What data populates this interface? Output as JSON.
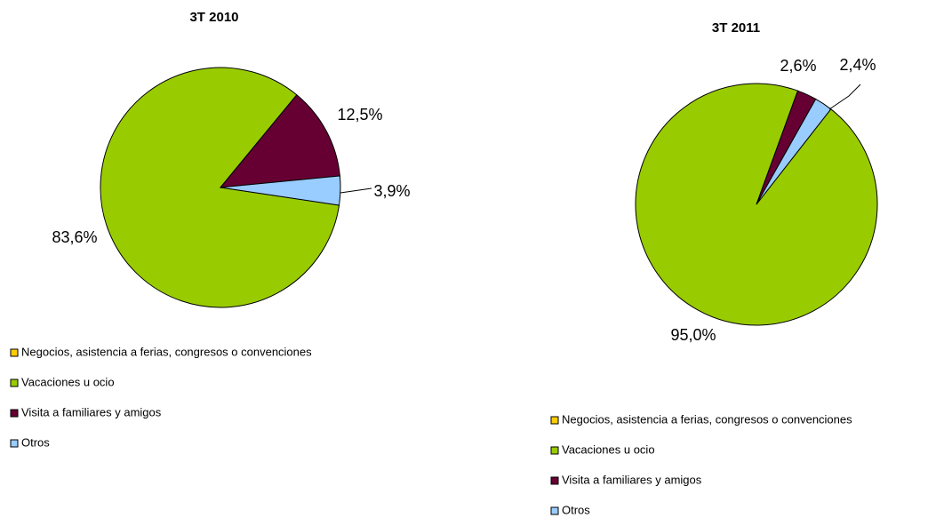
{
  "chart_data": [
    {
      "type": "pie",
      "title": "3T 2010",
      "categories": [
        "Negocios, asistencia a ferias, congresos o convenciones",
        "Vacaciones u ocio",
        "Visita a familiares y amigos",
        "Otros"
      ],
      "values": [
        0,
        83.6,
        12.5,
        3.9
      ],
      "value_labels": [
        null,
        "83,6%",
        "12,5%",
        "3,9%"
      ],
      "colors": [
        "#FFCC00",
        "#99CC00",
        "#660033",
        "#99CCFF"
      ]
    },
    {
      "type": "pie",
      "title": "3T 2011",
      "categories": [
        "Negocios, asistencia a ferias, congresos o convenciones",
        "Vacaciones u ocio",
        "Visita a familiares y amigos",
        "Otros"
      ],
      "values": [
        0,
        95.0,
        2.6,
        2.4
      ],
      "value_labels": [
        null,
        "95,0%",
        "2,6%",
        "2,4%"
      ],
      "colors": [
        "#FFCC00",
        "#99CC00",
        "#660033",
        "#99CCFF"
      ]
    }
  ]
}
